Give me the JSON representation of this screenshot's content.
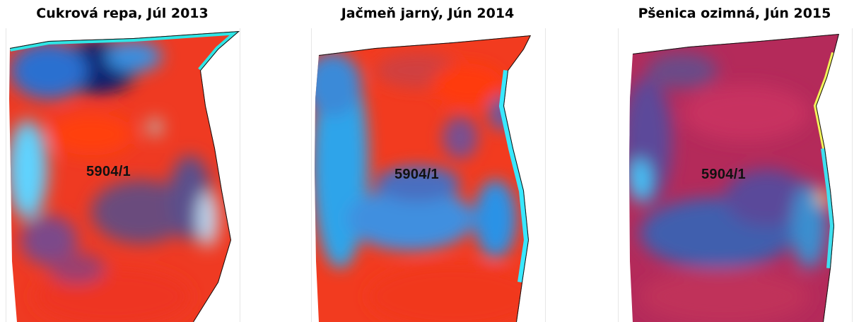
{
  "panels": [
    {
      "title": "Cukrová repa, Júl 2013",
      "parcel": "5904/1"
    },
    {
      "title": "Jačmeň jarný, Jún 2014",
      "parcel": "5904/1"
    },
    {
      "title": "Pšenica ozimná, Jún 2015",
      "parcel": "5904/1"
    }
  ]
}
